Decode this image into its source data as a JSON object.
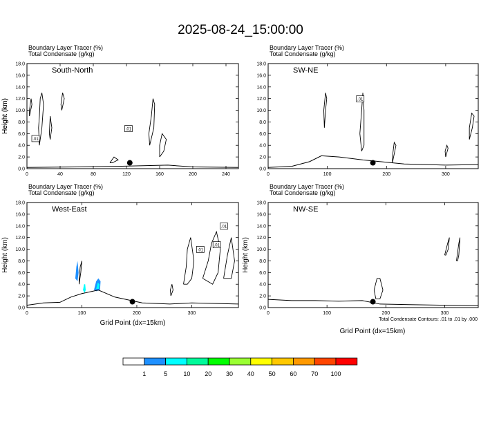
{
  "figure_title": "2025-08-24_15:00:00",
  "x_axis_label": "Grid Point (dx=15km)",
  "footnote": "Total Condensate Contours: .01 to .01 by .000",
  "colorbar": {
    "labels": [
      "1",
      "5",
      "10",
      "20",
      "30",
      "40",
      "50",
      "60",
      "70",
      "100"
    ],
    "colors": [
      "#ffffff",
      "#1e90ff",
      "#00ffff",
      "#00fa9a",
      "#00ff00",
      "#9aff32",
      "#ffff00",
      "#ffc800",
      "#ff9900",
      "#ff4500",
      "#ff0000"
    ]
  },
  "chart_data": [
    {
      "type": "contour",
      "label1": "Boundary Layer Tracer   (%)",
      "label2": "Total Condensate   (g/kg)",
      "section": "South-North",
      "ylabel": "Height (km)",
      "xticks": [
        "0",
        "40",
        "80",
        "120",
        "160",
        "200",
        "240"
      ],
      "yticks": [
        "0.0",
        "2.0",
        "4.0",
        "6.0",
        "8.0",
        "10.0",
        "12.0",
        "14.0",
        "16.0",
        "18.0"
      ],
      "xlim": [
        0,
        255
      ],
      "ylim": [
        0,
        18
      ],
      "contour_labels": [
        {
          "x": 10,
          "y": 5.1,
          "text": ".01"
        },
        {
          "x": 122,
          "y": 6.8,
          "text": ".01"
        }
      ],
      "marker": {
        "x": 124,
        "y": 1.0
      }
    },
    {
      "type": "contour",
      "label1": "Boundary Layer Tracer   (%)",
      "label2": "Total Condensate   (g/kg)",
      "section": "SW-NE",
      "ylabel": "Height (km)",
      "xticks": [
        "0",
        "100",
        "200",
        "300"
      ],
      "yticks": [
        "0.0",
        "2.0",
        "4.0",
        "6.0",
        "8.0",
        "10.0",
        "12.0",
        "14.0",
        "16.0",
        "18.0"
      ],
      "xlim": [
        0,
        355
      ],
      "ylim": [
        0,
        18
      ],
      "contour_labels": [
        {
          "x": 155,
          "y": 11.9,
          "text": ".01"
        }
      ],
      "marker": {
        "x": 177,
        "y": 1.0
      }
    },
    {
      "type": "contour",
      "label1": "Boundary Layer Tracer   (%)",
      "label2": "Total Condensate   (g/kg)",
      "section": "West-East",
      "ylabel": "Height (km)",
      "xticks": [
        "0",
        "100",
        "200",
        "300"
      ],
      "yticks": [
        "0.0",
        "2.0",
        "4.0",
        "6.0",
        "8.0",
        "10.0",
        "12.0",
        "14.0",
        "16.0",
        "18.0"
      ],
      "xlim": [
        0,
        385
      ],
      "ylim": [
        0,
        18
      ],
      "contour_labels": [
        {
          "x": 315,
          "y": 9.9,
          "text": ".01"
        },
        {
          "x": 345,
          "y": 10.7,
          "text": ".01"
        },
        {
          "x": 358,
          "y": 13.9,
          "text": ".01"
        }
      ],
      "marker": {
        "x": 192,
        "y": 1.0
      }
    },
    {
      "type": "contour",
      "label1": "Boundary Layer Tracer   (%)",
      "label2": "Total Condensate   (g/kg)",
      "section": "NW-SE",
      "ylabel": "",
      "xticks": [
        "0",
        "100",
        "200",
        "300"
      ],
      "yticks": [
        "0.0",
        "2.0",
        "4.0",
        "6.0",
        "8.0",
        "10.0",
        "12.0",
        "14.0",
        "16.0",
        "18.0"
      ],
      "xlim": [
        0,
        357
      ],
      "ylim": [
        0,
        18
      ],
      "contour_labels": [],
      "marker": {
        "x": 178,
        "y": 1.0
      }
    }
  ]
}
